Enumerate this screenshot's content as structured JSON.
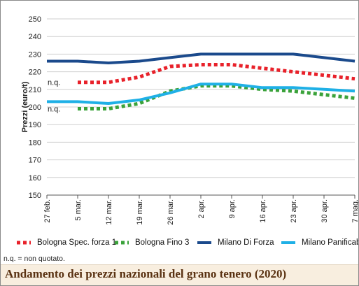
{
  "chart_data": {
    "type": "line",
    "title": "Andamento dei prezzi nazionali del grano tenero (2020)",
    "ylabel": "Prezzi (euro/t)",
    "xlabel": "",
    "ylim": [
      150,
      250
    ],
    "yticks": [
      150,
      160,
      170,
      180,
      190,
      200,
      210,
      220,
      230,
      240,
      250
    ],
    "grid": "horizontal",
    "legend_position": "bottom",
    "categories": [
      "27 feb.",
      "5 mar.",
      "12 mar.",
      "19 mar.",
      "26 mar.",
      "2 apr.",
      "9 apr.",
      "16 apr.",
      "23 apr.",
      "30 apr.",
      "7 mag."
    ],
    "series": [
      {
        "name": "Bologna Spec. forza 1",
        "color": "#e8212a",
        "style": "dotted",
        "values": [
          null,
          214,
          214,
          217,
          223,
          224,
          224,
          222,
          220,
          218,
          216
        ]
      },
      {
        "name": "Bologna Fino 3",
        "color": "#3aa23a",
        "style": "dotted",
        "values": [
          null,
          199,
          199,
          202,
          209,
          212,
          212,
          210,
          209,
          207,
          205
        ]
      },
      {
        "name": "Milano Di Forza",
        "color": "#1b4a8c",
        "style": "solid",
        "values": [
          226,
          226,
          225,
          226,
          228,
          230,
          230,
          230,
          230,
          228,
          226
        ]
      },
      {
        "name": "Milano Panificabile",
        "color": "#1fb0e6",
        "style": "solid",
        "values": [
          203,
          203,
          202,
          204,
          208,
          213,
          213,
          211,
          211,
          210,
          209
        ]
      }
    ],
    "annotations": [
      {
        "text": "n.q.",
        "series": "Bologna Spec. forza 1",
        "category": "27 feb."
      },
      {
        "text": "n.q.",
        "series": "Bologna Fino 3",
        "category": "27 feb."
      }
    ]
  },
  "footnote": "n.q. = non quotato."
}
